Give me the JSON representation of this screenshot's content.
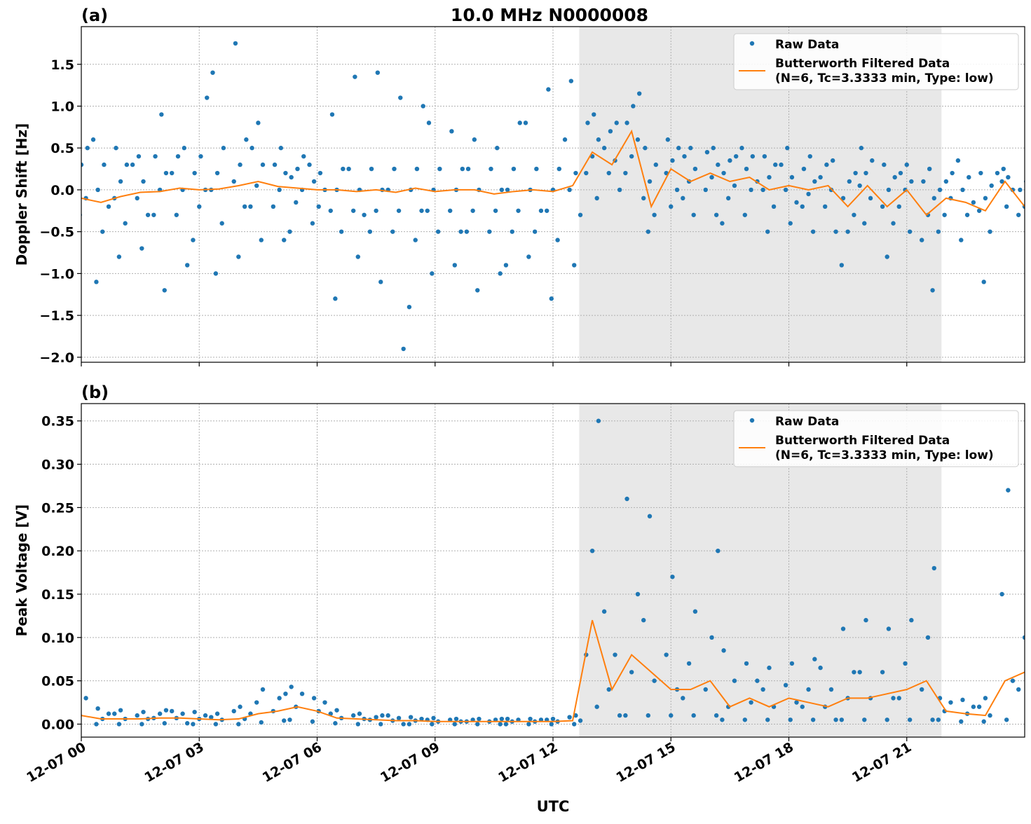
{
  "title": "10.0 MHz N0000008",
  "xlabel": "UTC",
  "colors": {
    "raw": "#1f77b4",
    "filtered": "#ff7f0e",
    "shade": "#e8e8e8"
  },
  "x_ticks": [
    "12-07 00",
    "12-07 03",
    "12-07 06",
    "12-07 09",
    "12-07 12",
    "12-07 15",
    "12-07 18",
    "12-07 21"
  ],
  "x_tick_hours": [
    0,
    3,
    6,
    9,
    12,
    15,
    18,
    21
  ],
  "xlim_hours": [
    0,
    24
  ],
  "shaded_interval": [
    "12:40",
    "21:53"
  ],
  "legend": {
    "raw": "Raw Data",
    "filtered_line1": "Butterworth Filtered Data",
    "filtered_line2": "(N=6, Tc=3.3333 min, Type: low)",
    "placement": "upper-right"
  },
  "chart_data": [
    {
      "type": "scatter+line",
      "panel_label": "(a)",
      "ylabel": "Doppler Shift [Hz]",
      "ylim": [
        -2.06,
        1.95
      ],
      "y_ticks": [
        1.5,
        1.0,
        0.5,
        0.0,
        -0.5,
        -1.0,
        -1.5,
        -2.0
      ],
      "y_tick_labels": [
        "1.5",
        "1.0",
        "0.5",
        "0.0",
        "−0.5",
        "−1.0",
        "−1.5",
        "−2.0"
      ],
      "grid": true,
      "x": [
        "00:00",
        "00:30",
        "01:00",
        "01:30",
        "02:00",
        "02:30",
        "03:00",
        "03:30",
        "04:00",
        "04:30",
        "05:00",
        "05:30",
        "06:00",
        "06:30",
        "07:00",
        "07:30",
        "08:00",
        "08:30",
        "09:00",
        "09:30",
        "10:00",
        "10:30",
        "11:00",
        "11:30",
        "12:00",
        "12:30",
        "13:00",
        "13:30",
        "14:00",
        "14:30",
        "15:00",
        "15:30",
        "16:00",
        "16:30",
        "17:00",
        "17:30",
        "18:00",
        "18:30",
        "19:00",
        "19:30",
        "20:00",
        "20:30",
        "21:00",
        "21:30",
        "22:00",
        "22:30",
        "23:00",
        "23:30",
        "24:00"
      ],
      "filtered": [
        -0.1,
        -0.15,
        -0.08,
        -0.03,
        -0.02,
        0.02,
        0.0,
        0.01,
        0.05,
        0.1,
        0.04,
        0.02,
        0.0,
        0.0,
        -0.02,
        0.0,
        -0.03,
        0.02,
        -0.02,
        0.0,
        0.0,
        -0.05,
        -0.02,
        0.0,
        -0.02,
        0.05,
        0.45,
        0.3,
        0.7,
        -0.2,
        0.25,
        0.1,
        0.2,
        0.1,
        0.15,
        0.0,
        0.05,
        0.0,
        0.05,
        -0.2,
        0.05,
        -0.2,
        0.0,
        -0.3,
        -0.1,
        -0.15,
        -0.25,
        0.1,
        -0.2
      ],
      "raw": [
        [
          -0.6,
          -0.3,
          -0.1,
          0.1,
          0.3,
          0.5
        ],
        [
          -1.1,
          -0.5,
          -0.2,
          0.0,
          0.3,
          0.6
        ],
        [
          -0.8,
          -0.4,
          -0.1,
          0.1,
          0.3,
          0.5
        ],
        [
          -0.7,
          -0.3,
          -0.1,
          0.1,
          0.3,
          0.4
        ],
        [
          -1.2,
          -0.3,
          0.0,
          0.2,
          0.4,
          0.9
        ],
        [
          -0.9,
          -0.3,
          0.0,
          0.2,
          0.4,
          0.5
        ],
        [
          -0.6,
          -0.2,
          0.0,
          0.2,
          0.4,
          1.1
        ],
        [
          -1.0,
          -0.4,
          0.0,
          0.2,
          0.5,
          1.4
        ],
        [
          -0.8,
          -0.2,
          0.1,
          0.3,
          0.6,
          1.75
        ],
        [
          -0.6,
          -0.2,
          0.05,
          0.3,
          0.5,
          0.8
        ],
        [
          -0.6,
          -0.2,
          0.0,
          0.2,
          0.3,
          0.5
        ],
        [
          -0.5,
          -0.15,
          0.0,
          0.15,
          0.25,
          0.4
        ],
        [
          -0.4,
          -0.2,
          0.0,
          0.1,
          0.2,
          0.3
        ],
        [
          -1.3,
          -0.5,
          -0.25,
          0.0,
          0.25,
          0.9
        ],
        [
          -0.8,
          -0.3,
          -0.25,
          0.0,
          0.25,
          1.35
        ],
        [
          -1.1,
          -0.5,
          -0.25,
          0.0,
          0.25,
          1.4
        ],
        [
          -1.9,
          -0.5,
          -0.25,
          0.0,
          0.25,
          1.1
        ],
        [
          -1.4,
          -0.6,
          -0.25,
          0.0,
          0.25,
          1.0
        ],
        [
          -1.0,
          -0.5,
          -0.25,
          0.0,
          0.25,
          0.8
        ],
        [
          -0.9,
          -0.5,
          -0.25,
          0.0,
          0.25,
          0.7
        ],
        [
          -1.2,
          -0.5,
          -0.25,
          0.0,
          0.25,
          0.6
        ],
        [
          -1.0,
          -0.5,
          -0.25,
          0.0,
          0.25,
          0.5
        ],
        [
          -0.9,
          -0.5,
          -0.25,
          0.0,
          0.25,
          0.8
        ],
        [
          -0.8,
          -0.5,
          -0.25,
          0.0,
          0.25,
          0.8
        ],
        [
          -1.3,
          -0.6,
          -0.25,
          0.0,
          0.25,
          1.2
        ],
        [
          -0.9,
          -0.3,
          0.0,
          0.2,
          0.6,
          1.3
        ],
        [
          -0.1,
          0.2,
          0.4,
          0.6,
          0.8,
          0.9
        ],
        [
          0.0,
          0.2,
          0.35,
          0.5,
          0.7,
          0.8
        ],
        [
          0.2,
          0.4,
          0.6,
          0.8,
          1.0,
          1.15
        ],
        [
          -0.5,
          -0.3,
          -0.1,
          0.1,
          0.3,
          0.5
        ],
        [
          -0.2,
          0.0,
          0.2,
          0.35,
          0.5,
          0.6
        ],
        [
          -0.3,
          -0.1,
          0.1,
          0.25,
          0.4,
          0.5
        ],
        [
          -0.3,
          0.0,
          0.15,
          0.3,
          0.45,
          0.5
        ],
        [
          -0.4,
          -0.1,
          0.05,
          0.2,
          0.35,
          0.4
        ],
        [
          -0.3,
          0.0,
          0.1,
          0.25,
          0.4,
          0.5
        ],
        [
          -0.5,
          -0.2,
          0.0,
          0.15,
          0.3,
          0.4
        ],
        [
          -0.4,
          -0.15,
          0.0,
          0.15,
          0.3,
          0.5
        ],
        [
          -0.5,
          -0.2,
          -0.05,
          0.1,
          0.25,
          0.4
        ],
        [
          -0.5,
          -0.2,
          0.0,
          0.15,
          0.3,
          0.35
        ],
        [
          -0.9,
          -0.5,
          -0.3,
          -0.1,
          0.1,
          0.2
        ],
        [
          -0.4,
          -0.1,
          0.05,
          0.2,
          0.35,
          0.5
        ],
        [
          -0.8,
          -0.4,
          -0.2,
          0.0,
          0.15,
          0.3
        ],
        [
          -0.5,
          -0.2,
          0.0,
          0.1,
          0.2,
          0.3
        ],
        [
          -1.2,
          -0.6,
          -0.3,
          -0.1,
          0.1,
          0.25
        ],
        [
          -0.5,
          -0.3,
          -0.1,
          0.0,
          0.1,
          0.2
        ],
        [
          -0.6,
          -0.3,
          -0.15,
          0.0,
          0.15,
          0.35
        ],
        [
          -1.1,
          -0.5,
          -0.25,
          -0.1,
          0.05,
          0.2
        ],
        [
          -0.2,
          0.0,
          0.1,
          0.15,
          0.2,
          0.25
        ],
        [
          -0.5,
          -0.3,
          -0.2,
          -0.1,
          0.0,
          0.1
        ]
      ]
    },
    {
      "type": "scatter+line",
      "panel_label": "(b)",
      "ylabel": "Peak Voltage [V]",
      "ylim": [
        -0.015,
        0.37
      ],
      "y_ticks": [
        0.35,
        0.3,
        0.25,
        0.2,
        0.15,
        0.1,
        0.05,
        0.0
      ],
      "y_tick_labels": [
        "0.35",
        "0.30",
        "0.25",
        "0.20",
        "0.15",
        "0.10",
        "0.05",
        "0.00"
      ],
      "grid": true,
      "x": [
        "00:00",
        "00:30",
        "01:00",
        "01:30",
        "02:00",
        "02:30",
        "03:00",
        "03:30",
        "04:00",
        "04:30",
        "05:00",
        "05:30",
        "06:00",
        "06:30",
        "07:00",
        "07:30",
        "08:00",
        "08:30",
        "09:00",
        "09:30",
        "10:00",
        "10:30",
        "11:00",
        "11:30",
        "12:00",
        "12:30",
        "13:00",
        "13:30",
        "14:00",
        "14:30",
        "15:00",
        "15:30",
        "16:00",
        "16:30",
        "17:00",
        "17:30",
        "18:00",
        "18:30",
        "19:00",
        "19:30",
        "20:00",
        "20:30",
        "21:00",
        "21:30",
        "22:00",
        "22:30",
        "23:00",
        "23:30",
        "24:00"
      ],
      "filtered": [
        0.01,
        0.006,
        0.006,
        0.006,
        0.007,
        0.007,
        0.006,
        0.005,
        0.006,
        0.012,
        0.015,
        0.02,
        0.015,
        0.007,
        0.006,
        0.005,
        0.004,
        0.004,
        0.003,
        0.003,
        0.003,
        0.003,
        0.003,
        0.003,
        0.003,
        0.004,
        0.12,
        0.04,
        0.08,
        0.06,
        0.04,
        0.04,
        0.05,
        0.02,
        0.03,
        0.02,
        0.03,
        0.025,
        0.02,
        0.03,
        0.03,
        0.035,
        0.04,
        0.05,
        0.015,
        0.012,
        0.01,
        0.05,
        0.06
      ],
      "raw": [
        [
          0.0,
          0.01,
          0.03,
          0.08
        ],
        [
          0.0,
          0.006,
          0.012,
          0.018
        ],
        [
          0.0,
          0.006,
          0.012,
          0.016
        ],
        [
          0.0,
          0.006,
          0.01,
          0.014
        ],
        [
          0.001,
          0.007,
          0.012,
          0.016
        ],
        [
          0.001,
          0.007,
          0.012,
          0.015
        ],
        [
          0.0,
          0.006,
          0.01,
          0.014
        ],
        [
          0.0,
          0.005,
          0.008,
          0.012
        ],
        [
          0.0,
          0.006,
          0.015,
          0.02
        ],
        [
          0.002,
          0.012,
          0.025,
          0.04
        ],
        [
          0.004,
          0.015,
          0.03,
          0.035
        ],
        [
          0.005,
          0.02,
          0.035,
          0.043
        ],
        [
          0.003,
          0.015,
          0.025,
          0.03
        ],
        [
          0.001,
          0.007,
          0.012,
          0.016
        ],
        [
          0.0,
          0.006,
          0.01,
          0.012
        ],
        [
          0.0,
          0.005,
          0.008,
          0.01
        ],
        [
          0.0,
          0.004,
          0.007,
          0.01
        ],
        [
          0.0,
          0.004,
          0.006,
          0.008
        ],
        [
          0.0,
          0.003,
          0.005,
          0.007
        ],
        [
          0.0,
          0.003,
          0.005,
          0.006
        ],
        [
          0.0,
          0.003,
          0.005,
          0.006
        ],
        [
          0.0,
          0.003,
          0.005,
          0.006
        ],
        [
          0.0,
          0.003,
          0.005,
          0.006
        ],
        [
          0.0,
          0.003,
          0.005,
          0.006
        ],
        [
          0.0,
          0.003,
          0.005,
          0.006
        ],
        [
          0.0,
          0.004,
          0.008,
          0.01
        ],
        [
          0.02,
          0.08,
          0.2,
          0.35
        ],
        [
          0.01,
          0.04,
          0.08,
          0.13
        ],
        [
          0.01,
          0.06,
          0.15,
          0.26
        ],
        [
          0.01,
          0.05,
          0.12,
          0.24
        ],
        [
          0.01,
          0.04,
          0.08,
          0.17
        ],
        [
          0.01,
          0.03,
          0.07,
          0.13
        ],
        [
          0.01,
          0.04,
          0.1,
          0.2
        ],
        [
          0.005,
          0.02,
          0.05,
          0.085
        ],
        [
          0.005,
          0.025,
          0.05,
          0.07
        ],
        [
          0.005,
          0.02,
          0.04,
          0.065
        ],
        [
          0.005,
          0.025,
          0.045,
          0.07
        ],
        [
          0.005,
          0.02,
          0.04,
          0.075
        ],
        [
          0.005,
          0.02,
          0.04,
          0.065
        ],
        [
          0.005,
          0.03,
          0.06,
          0.11
        ],
        [
          0.005,
          0.03,
          0.06,
          0.12
        ],
        [
          0.005,
          0.03,
          0.06,
          0.11
        ],
        [
          0.005,
          0.03,
          0.07,
          0.12
        ],
        [
          0.005,
          0.04,
          0.1,
          0.18
        ],
        [
          0.005,
          0.015,
          0.025,
          0.03
        ],
        [
          0.003,
          0.012,
          0.02,
          0.028
        ],
        [
          0.003,
          0.01,
          0.02,
          0.03
        ],
        [
          0.005,
          0.05,
          0.15,
          0.27
        ],
        [
          0.005,
          0.04,
          0.1,
          0.17
        ]
      ]
    }
  ]
}
